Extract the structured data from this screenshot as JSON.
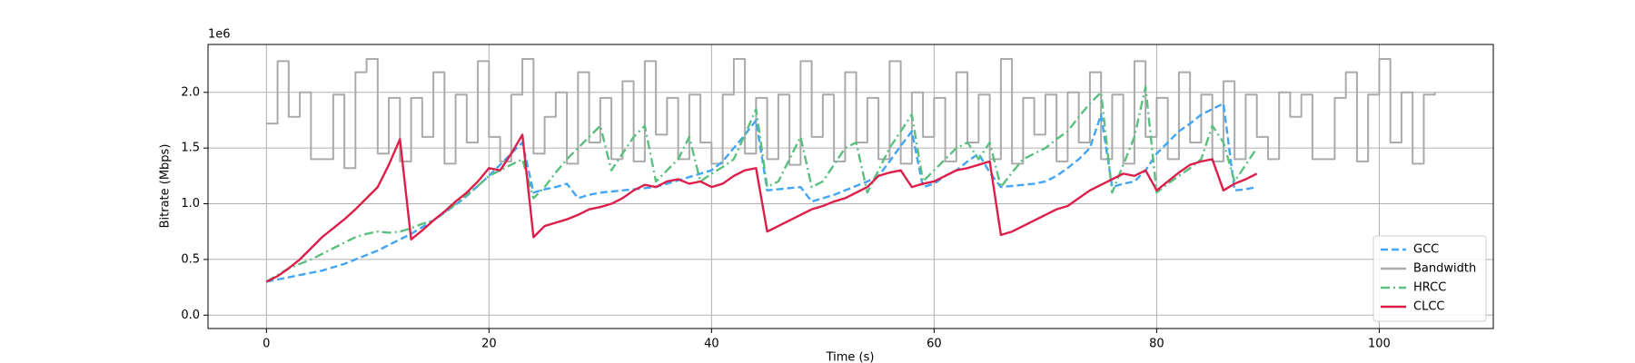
{
  "chart_data": {
    "type": "line",
    "x_label": "Time (s)",
    "y_label": "Bitrate (Mbps)",
    "y_offset_label": "1e6",
    "xlim": [
      -5.25,
      110.25
    ],
    "ylim": [
      -0.12,
      2.43
    ],
    "xticks": [
      0,
      20,
      40,
      60,
      80,
      100
    ],
    "yticks": [
      {
        "value": 0,
        "label": "0.0"
      },
      0.5,
      {
        "value": 1,
        "label": "1.0"
      },
      1.5,
      {
        "value": 2,
        "label": "2.0"
      }
    ],
    "grid": true,
    "legend": "lower right",
    "x": [
      0,
      1,
      2,
      3,
      4,
      5,
      6,
      7,
      8,
      9,
      10,
      11,
      12,
      13,
      14,
      15,
      16,
      17,
      18,
      19,
      20,
      21,
      22,
      23,
      24,
      25,
      26,
      27,
      28,
      29,
      30,
      31,
      32,
      33,
      34,
      35,
      36,
      37,
      38,
      39,
      40,
      41,
      42,
      43,
      44,
      45,
      46,
      47,
      48,
      49,
      50,
      51,
      52,
      53,
      54,
      55,
      56,
      57,
      58,
      59,
      60,
      61,
      62,
      63,
      64,
      65,
      66,
      67,
      68,
      69,
      70,
      71,
      72,
      73,
      74,
      75,
      76,
      77,
      78,
      79,
      80,
      81,
      82,
      83,
      84,
      85,
      86,
      87,
      88,
      89
    ],
    "series": [
      {
        "name": "GCC",
        "color": "#42a5f5",
        "dash": "dashed",
        "values": [
          0.3,
          0.32,
          0.34,
          0.36,
          0.38,
          0.4,
          0.43,
          0.46,
          0.5,
          0.54,
          0.58,
          0.63,
          0.68,
          0.73,
          0.79,
          0.85,
          0.92,
          0.99,
          1.07,
          1.16,
          1.25,
          1.35,
          1.45,
          1.55,
          1.1,
          1.13,
          1.15,
          1.18,
          1.05,
          1.08,
          1.1,
          1.11,
          1.12,
          1.13,
          1.14,
          1.15,
          1.18,
          1.21,
          1.24,
          1.27,
          1.3,
          1.38,
          1.5,
          1.62,
          1.75,
          1.12,
          1.13,
          1.14,
          1.15,
          1.02,
          1.05,
          1.08,
          1.12,
          1.16,
          1.2,
          1.25,
          1.38,
          1.52,
          1.65,
          1.15,
          1.18,
          1.25,
          1.3,
          1.38,
          1.45,
          1.28,
          1.15,
          1.16,
          1.17,
          1.18,
          1.2,
          1.25,
          1.32,
          1.4,
          1.5,
          1.8,
          1.15,
          1.18,
          1.2,
          1.3,
          1.45,
          1.55,
          1.65,
          1.72,
          1.8,
          1.85,
          1.9,
          1.12,
          1.13,
          1.15
        ]
      },
      {
        "name": "Bandwidth",
        "color": "#aaaaaa",
        "dash": "solid",
        "step": true,
        "x": [
          0,
          1,
          2,
          3,
          4,
          5,
          6,
          7,
          8,
          9,
          10,
          11,
          12,
          13,
          14,
          15,
          16,
          17,
          18,
          19,
          20,
          21,
          22,
          23,
          24,
          25,
          26,
          27,
          28,
          29,
          30,
          31,
          32,
          33,
          34,
          35,
          36,
          37,
          38,
          39,
          40,
          41,
          42,
          43,
          44,
          45,
          46,
          47,
          48,
          49,
          50,
          51,
          52,
          53,
          54,
          55,
          56,
          57,
          58,
          59,
          60,
          61,
          62,
          63,
          64,
          65,
          66,
          67,
          68,
          69,
          70,
          71,
          72,
          73,
          74,
          75,
          76,
          77,
          78,
          79,
          80,
          81,
          82,
          83,
          84,
          85,
          86,
          87,
          88,
          89,
          90,
          91,
          92,
          93,
          94,
          95,
          96,
          97,
          98,
          99,
          100,
          101,
          102,
          103,
          104,
          105
        ],
        "values": [
          1.72,
          2.28,
          1.78,
          2.0,
          1.4,
          1.4,
          1.98,
          1.32,
          2.18,
          2.3,
          1.45,
          1.95,
          1.38,
          1.95,
          1.6,
          2.18,
          1.36,
          1.98,
          1.55,
          2.28,
          1.6,
          1.38,
          1.98,
          2.3,
          1.45,
          1.78,
          2.0,
          1.36,
          2.18,
          1.55,
          1.95,
          1.4,
          2.1,
          1.38,
          2.28,
          1.62,
          1.95,
          1.4,
          1.98,
          1.55,
          1.36,
          1.98,
          2.3,
          1.45,
          1.95,
          1.4,
          1.98,
          1.35,
          2.28,
          1.6,
          1.98,
          1.38,
          2.18,
          1.55,
          1.95,
          1.4,
          2.28,
          1.36,
          2.0,
          1.6,
          1.95,
          1.38,
          2.18,
          1.55,
          1.98,
          1.4,
          2.3,
          1.36,
          1.95,
          1.62,
          1.98,
          1.38,
          2.0,
          1.55,
          2.18,
          1.4,
          1.98,
          1.36,
          2.28,
          1.6,
          1.95,
          1.4,
          2.18,
          1.55,
          1.98,
          1.38,
          2.1,
          1.4,
          1.98,
          1.6,
          1.4,
          2.0,
          1.78,
          1.98,
          1.4,
          1.4,
          1.95,
          2.18,
          1.38,
          1.98,
          2.3,
          1.55,
          2.0,
          1.36,
          1.98,
          2.0
        ]
      },
      {
        "name": "HRCC",
        "color": "#5bbf7f",
        "dash": "dashdot",
        "values": [
          0.3,
          0.36,
          0.42,
          0.46,
          0.5,
          0.55,
          0.6,
          0.65,
          0.7,
          0.73,
          0.75,
          0.74,
          0.75,
          0.78,
          0.82,
          0.85,
          0.92,
          1.0,
          1.08,
          1.16,
          1.25,
          1.3,
          1.35,
          1.4,
          1.05,
          1.15,
          1.28,
          1.4,
          1.5,
          1.6,
          1.7,
          1.3,
          1.45,
          1.6,
          1.7,
          1.2,
          1.3,
          1.4,
          1.6,
          1.2,
          1.27,
          1.33,
          1.4,
          1.62,
          1.85,
          1.15,
          1.2,
          1.4,
          1.6,
          1.15,
          1.2,
          1.35,
          1.5,
          1.55,
          1.1,
          1.3,
          1.5,
          1.65,
          1.8,
          1.2,
          1.3,
          1.4,
          1.5,
          1.55,
          1.4,
          1.55,
          1.15,
          1.28,
          1.4,
          1.45,
          1.5,
          1.58,
          1.65,
          1.78,
          1.9,
          2.0,
          1.1,
          1.35,
          1.6,
          2.05,
          1.1,
          1.18,
          1.25,
          1.32,
          1.4,
          1.7,
          1.55,
          1.2,
          1.35,
          1.5
        ]
      },
      {
        "name": "CLCC",
        "color": "#dc1f4a",
        "dash": "solid",
        "values": [
          0.3,
          0.35,
          0.42,
          0.5,
          0.6,
          0.7,
          0.78,
          0.86,
          0.95,
          1.05,
          1.15,
          1.35,
          1.58,
          0.68,
          0.76,
          0.85,
          0.93,
          1.02,
          1.1,
          1.2,
          1.32,
          1.3,
          1.45,
          1.62,
          0.7,
          0.8,
          0.83,
          0.86,
          0.9,
          0.95,
          0.97,
          1.0,
          1.05,
          1.12,
          1.17,
          1.15,
          1.2,
          1.22,
          1.18,
          1.2,
          1.15,
          1.18,
          1.25,
          1.3,
          1.32,
          0.75,
          0.8,
          0.85,
          0.9,
          0.95,
          0.98,
          1.02,
          1.05,
          1.1,
          1.15,
          1.25,
          1.28,
          1.3,
          1.15,
          1.18,
          1.2,
          1.25,
          1.3,
          1.32,
          1.35,
          1.38,
          0.72,
          0.75,
          0.8,
          0.85,
          0.9,
          0.95,
          0.98,
          1.05,
          1.12,
          1.17,
          1.22,
          1.27,
          1.25,
          1.3,
          1.12,
          1.2,
          1.28,
          1.35,
          1.38,
          1.4,
          1.12,
          1.18,
          1.22,
          1.27
        ]
      }
    ]
  }
}
